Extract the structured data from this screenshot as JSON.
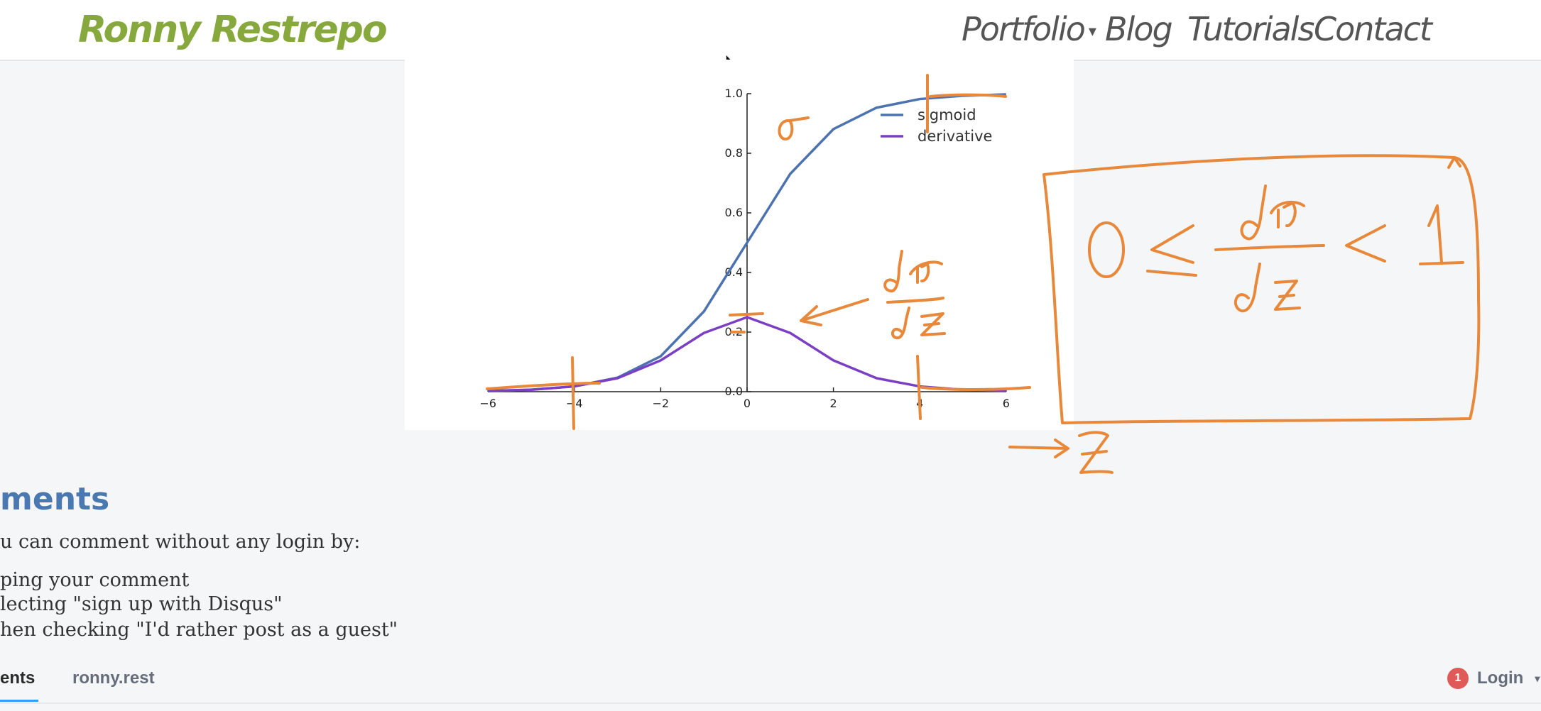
{
  "header": {
    "brand": "Ronny Restrepo",
    "nav": [
      {
        "label": "Portfolio"
      },
      {
        "label": "Blog"
      },
      {
        "label": "Tutorials"
      },
      {
        "label": "Contact"
      }
    ]
  },
  "chart_data": {
    "type": "line",
    "x_range": [
      -6,
      6
    ],
    "ylim": [
      0.0,
      1.0
    ],
    "x_ticks": [
      "−6",
      "−4",
      "−2",
      "0",
      "2",
      "4",
      "6"
    ],
    "y_ticks": [
      "0.0",
      "0.2",
      "0.4",
      "0.6",
      "0.8",
      "1.0"
    ],
    "legend_position": "top-right",
    "series": [
      {
        "name": "sigmoid",
        "color": "#4c72b0",
        "x": [
          -6,
          -5,
          -4,
          -3,
          -2,
          -1,
          0,
          1,
          2,
          3,
          4,
          5,
          6
        ],
        "y": [
          0.0025,
          0.0067,
          0.018,
          0.047,
          0.119,
          0.269,
          0.5,
          0.731,
          0.881,
          0.953,
          0.982,
          0.993,
          0.9975
        ]
      },
      {
        "name": "derivative",
        "color": "#7b3fc4",
        "x": [
          -6,
          -5,
          -4,
          -3,
          -2,
          -1,
          0,
          1,
          2,
          3,
          4,
          5,
          6
        ],
        "y": [
          0.0025,
          0.0066,
          0.0177,
          0.0452,
          0.105,
          0.197,
          0.25,
          0.197,
          0.105,
          0.0452,
          0.0177,
          0.0066,
          0.0025
        ]
      }
    ],
    "annotation_color": "#e8883a"
  },
  "comments": {
    "title": "ments",
    "intro": "u can comment without any login by:",
    "steps": [
      "ping your comment",
      "lecting \"sign up with Disqus\"",
      "hen checking \"I'd rather post as a guest\""
    ],
    "tabs": [
      "ents",
      "ronny.rest"
    ],
    "login_label": "Login",
    "notification_count": "1"
  }
}
